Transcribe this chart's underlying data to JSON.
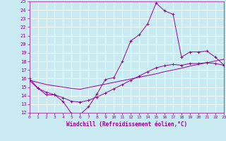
{
  "title": "",
  "xlabel": "Windchill (Refroidissement éolien,°C)",
  "ylabel": "",
  "background_color": "#c8eaf0",
  "line_color": "#990099",
  "grid_color": "#ffffff",
  "x_values": [
    0,
    1,
    2,
    3,
    4,
    5,
    6,
    7,
    8,
    9,
    10,
    11,
    12,
    13,
    14,
    15,
    16,
    17,
    18,
    19,
    20,
    21,
    22,
    23
  ],
  "temp_line": [
    16.0,
    14.9,
    14.1,
    14.1,
    13.3,
    11.9,
    11.8,
    12.7,
    14.2,
    15.9,
    16.1,
    18.0,
    20.4,
    21.1,
    22.4,
    24.8,
    23.9,
    23.5,
    18.5,
    19.1,
    19.1,
    19.2,
    18.5,
    17.6
  ],
  "line2": [
    15.8,
    15.55,
    15.3,
    15.15,
    15.0,
    14.85,
    14.75,
    14.95,
    15.15,
    15.35,
    15.55,
    15.75,
    15.95,
    16.15,
    16.35,
    16.55,
    16.8,
    17.0,
    17.2,
    17.45,
    17.65,
    17.85,
    18.05,
    18.25
  ],
  "line3": [
    15.8,
    14.85,
    14.4,
    14.1,
    13.75,
    13.35,
    13.25,
    13.45,
    13.85,
    14.3,
    14.8,
    15.3,
    15.8,
    16.3,
    16.8,
    17.25,
    17.5,
    17.65,
    17.55,
    17.75,
    17.75,
    17.85,
    17.75,
    17.55
  ],
  "xlim": [
    0,
    23
  ],
  "ylim": [
    12,
    25
  ],
  "yticks": [
    12,
    13,
    14,
    15,
    16,
    17,
    18,
    19,
    20,
    21,
    22,
    23,
    24,
    25
  ],
  "xticks": [
    0,
    1,
    2,
    3,
    4,
    5,
    6,
    7,
    8,
    9,
    10,
    11,
    12,
    13,
    14,
    15,
    16,
    17,
    18,
    19,
    20,
    21,
    22,
    23
  ]
}
